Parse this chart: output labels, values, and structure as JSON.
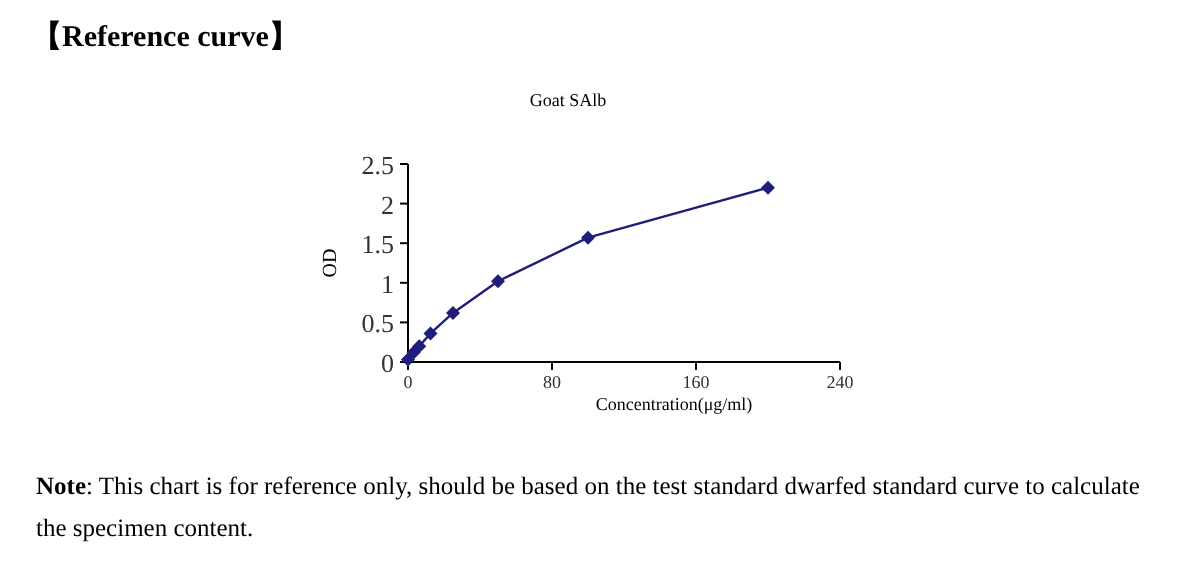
{
  "chart_data": {
    "type": "line",
    "title": "【Reference curve】",
    "subtitle": "Goat SAlb",
    "xlabel": "Concentration(μg/ml)",
    "ylabel": "OD",
    "x": [
      0,
      3.12,
      6.25,
      12.5,
      25,
      50,
      100,
      200
    ],
    "series": [
      {
        "color": "#1f1f7a",
        "values": [
          0.03,
          0.12,
          0.2,
          0.36,
          0.62,
          1.02,
          1.57,
          2.2
        ]
      }
    ],
    "xlim": [
      0,
      240
    ],
    "xticks": [
      0,
      80,
      160,
      240
    ],
    "ylim": [
      0,
      2.5
    ],
    "yticks": [
      0,
      0.5,
      1,
      1.5,
      2,
      2.5
    ],
    "marker": "diamond",
    "line_style": "solid",
    "grid": false,
    "annotations": [
      "Note: This chart is for reference only, should be based on the test standard dwarfed standard curve to calculate the specimen content."
    ]
  }
}
